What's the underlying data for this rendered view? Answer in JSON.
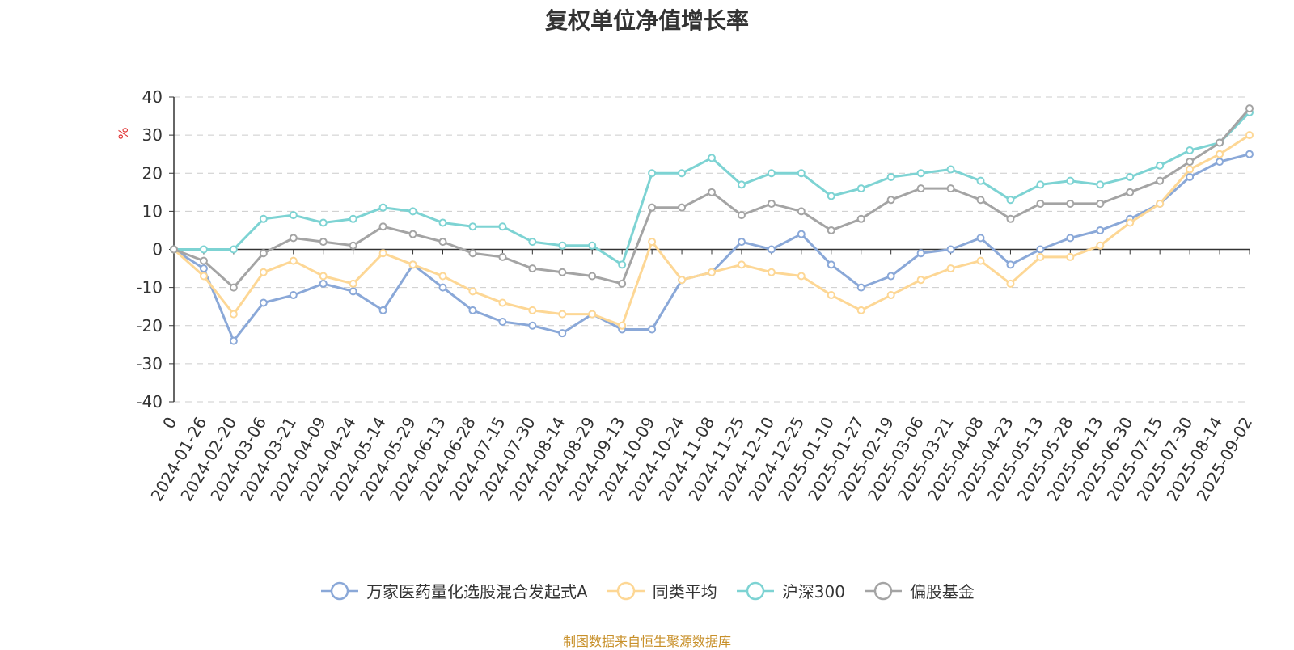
{
  "chart_data": {
    "type": "line",
    "title": "复权单位净值增长率",
    "ylabel": "%",
    "ylim": [
      -40,
      40
    ],
    "yticks": [
      40,
      30,
      20,
      10,
      0,
      -10,
      -20,
      -30,
      -40
    ],
    "grid": true,
    "legend_placement": "bottom",
    "x_tick_labels": [
      "0",
      "2024-01-26",
      "2024-02-20",
      "2024-03-06",
      "2024-03-21",
      "2024-04-09",
      "2024-04-24",
      "2024-05-14",
      "2024-05-29",
      "2024-06-13",
      "2024-06-28",
      "2024-07-15",
      "2024-07-30",
      "2024-08-14",
      "2024-08-29",
      "2024-09-13",
      "2024-10-09",
      "2024-10-24",
      "2024-11-08",
      "2024-11-25",
      "2024-12-10",
      "2024-12-25",
      "2025-01-10",
      "2025-01-27",
      "2025-02-19",
      "2025-03-06",
      "2025-03-21",
      "2025-04-08",
      "2025-04-23",
      "2025-05-13",
      "2025-05-28",
      "2025-06-13",
      "2025-06-30",
      "2025-07-15",
      "2025-07-30",
      "2025-08-14",
      "2025-09-02"
    ],
    "series": [
      {
        "name": "万家医药量化选股混合发起式A",
        "color": "#8aa8d8",
        "values": [
          0,
          -5,
          -24,
          -14,
          -12,
          -9,
          -11,
          -16,
          -4,
          -10,
          -16,
          -19,
          -20,
          -22,
          -17,
          -21,
          -21,
          -8,
          -6,
          2,
          0,
          4,
          -4,
          -10,
          -7,
          -1,
          0,
          3,
          -4,
          0,
          3,
          5,
          8,
          12,
          19,
          23,
          25
        ]
      },
      {
        "name": "同类平均",
        "color": "#fdd795",
        "values": [
          0,
          -7,
          -17,
          -6,
          -3,
          -7,
          -9,
          -1,
          -4,
          -7,
          -11,
          -14,
          -16,
          -17,
          -17,
          -20,
          2,
          -8,
          -6,
          -4,
          -6,
          -7,
          -12,
          -16,
          -12,
          -8,
          -5,
          -3,
          -9,
          -2,
          -2,
          1,
          7,
          12,
          21,
          25,
          30
        ]
      },
      {
        "name": "沪深300",
        "color": "#7dd3d3",
        "values": [
          0,
          0,
          0,
          8,
          9,
          7,
          8,
          11,
          10,
          7,
          6,
          6,
          2,
          1,
          1,
          -4,
          20,
          20,
          24,
          17,
          20,
          20,
          14,
          16,
          19,
          20,
          21,
          18,
          13,
          17,
          18,
          17,
          19,
          22,
          26,
          28,
          36
        ]
      },
      {
        "name": "偏股基金",
        "color": "#a4a4a4",
        "values": [
          0,
          -3,
          -10,
          -1,
          3,
          2,
          1,
          6,
          4,
          2,
          -1,
          -2,
          -5,
          -6,
          -7,
          -9,
          11,
          11,
          15,
          9,
          12,
          10,
          5,
          8,
          13,
          16,
          16,
          13,
          8,
          12,
          12,
          12,
          15,
          18,
          23,
          28,
          37
        ]
      }
    ]
  },
  "source_text": "制图数据来自恒生聚源数据库"
}
